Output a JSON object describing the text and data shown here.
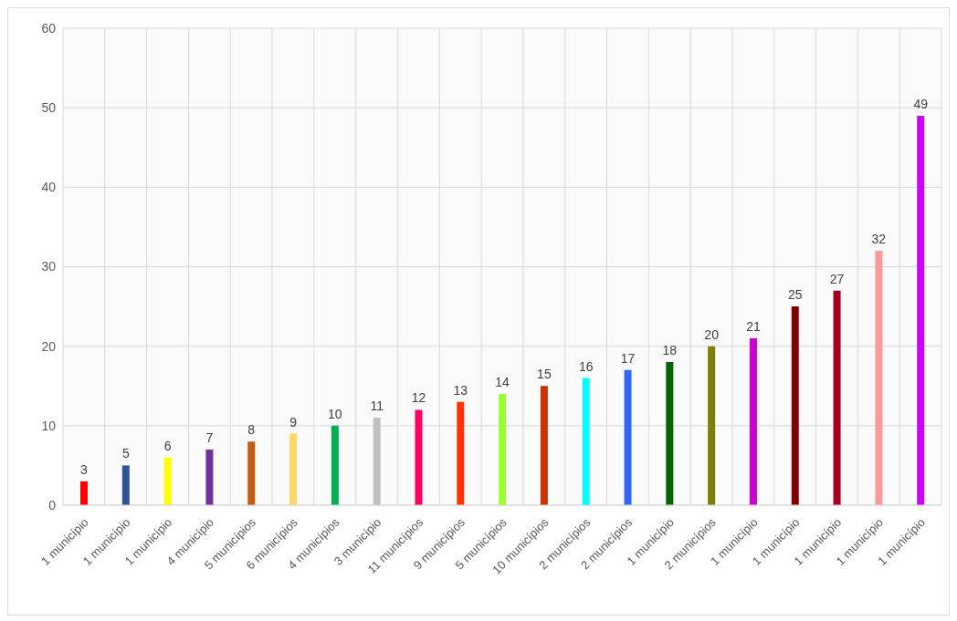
{
  "chart_data": {
    "type": "bar",
    "categories": [
      "1 município",
      "1 município",
      "1 município",
      "4 município",
      "5 municípios",
      "6 municípios",
      "4 municípios",
      "3 município",
      "11 municípios",
      "9 municípios",
      "5 municípios",
      "10 municípios",
      "2 municípios",
      "2 municípios",
      "1 município",
      "2 municípios",
      "1 município",
      "1 município",
      "1 município",
      "1 município",
      "1 município"
    ],
    "values": [
      3,
      5,
      6,
      7,
      8,
      9,
      10,
      11,
      12,
      13,
      14,
      15,
      16,
      17,
      18,
      20,
      21,
      25,
      27,
      32,
      49
    ],
    "colors": [
      "#ff0000",
      "#2f5597",
      "#ffff00",
      "#7030a0",
      "#c55a11",
      "#ffd966",
      "#00b050",
      "#c0c0c0",
      "#ff0066",
      "#ff3300",
      "#99ff33",
      "#cc3300",
      "#00ffff",
      "#3366ff",
      "#006600",
      "#808000",
      "#cc00cc",
      "#800000",
      "#a50021",
      "#ff9999",
      "#cc00ff"
    ],
    "ylim": [
      0,
      60
    ],
    "yticks": [
      0,
      10,
      20,
      30,
      40,
      50,
      60
    ],
    "grid": true,
    "data_labels": true
  }
}
